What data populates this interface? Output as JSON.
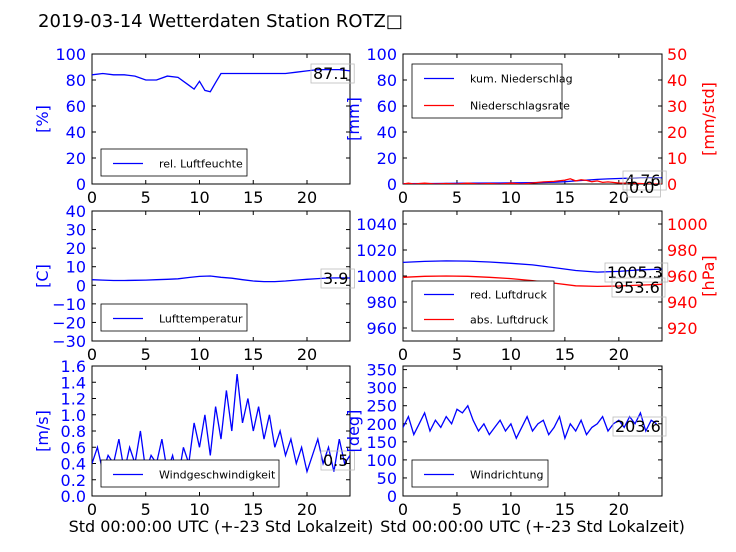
{
  "title": "2019-03-14 Wetterdaten Station ROTZ□",
  "colors": {
    "primary": "#0000ff",
    "secondary": "#ff0000",
    "text": "#000000"
  },
  "chart_data": [
    {
      "id": "humidity",
      "type": "line",
      "ylabel": "[%]",
      "xlabel": "",
      "xlim": [
        0,
        24
      ],
      "ylim": [
        0,
        100
      ],
      "xticks": [
        "0",
        "5",
        "10",
        "15",
        "20"
      ],
      "yticks": [
        "0",
        "20",
        "40",
        "60",
        "80",
        "100"
      ],
      "series": [
        {
          "name": "rel. Luftfeuchte",
          "color": "#0000ff",
          "x": [
            0,
            1,
            2,
            3,
            4,
            5,
            6,
            7,
            8,
            9,
            9.5,
            10,
            10.5,
            11,
            11.5,
            12,
            13,
            14,
            15,
            16,
            17,
            18,
            19,
            20,
            21,
            22,
            23,
            24
          ],
          "y": [
            84,
            85,
            84,
            84,
            83,
            80,
            80,
            83,
            82,
            76,
            73,
            79,
            72,
            71,
            78,
            85,
            85,
            85,
            85,
            85,
            85,
            85,
            86,
            87,
            88,
            88,
            88,
            87
          ]
        }
      ],
      "annotations": [
        "87.1"
      ]
    },
    {
      "id": "precipitation",
      "type": "line",
      "ylabel": "[mm]",
      "y2label": "[mm/std]",
      "xlabel": "",
      "xlim": [
        0,
        24
      ],
      "ylim": [
        0,
        100
      ],
      "y2lim": [
        0,
        50
      ],
      "xticks": [
        "0",
        "5",
        "10",
        "15",
        "20"
      ],
      "yticks": [
        "0",
        "20",
        "40",
        "60",
        "80",
        "100"
      ],
      "y2ticks": [
        "0",
        "10",
        "20",
        "30",
        "40",
        "50"
      ],
      "series": [
        {
          "name": "kum. Niederschlag",
          "color": "#0000ff",
          "axis": "left",
          "x": [
            0,
            3,
            6,
            9,
            12,
            14,
            15,
            16,
            17,
            18,
            19,
            20,
            21,
            22,
            23,
            24
          ],
          "y": [
            0.2,
            0.4,
            0.6,
            0.8,
            1.0,
            1.4,
            1.8,
            2.4,
            3.0,
            3.5,
            3.9,
            4.2,
            4.5,
            4.7,
            4.76,
            4.76
          ]
        },
        {
          "name": "Niederschlagsrate",
          "color": "#ff0000",
          "axis": "right",
          "x": [
            0,
            0.5,
            1,
            2,
            3,
            4,
            5,
            6,
            7,
            8,
            9,
            10,
            11,
            12,
            13,
            14,
            15,
            15.5,
            16,
            16.5,
            17,
            17.5,
            18,
            18.5,
            19,
            20,
            21,
            22,
            23,
            24
          ],
          "y": [
            0,
            0.3,
            0,
            0.3,
            0,
            0.2,
            0,
            0.3,
            0,
            0.2,
            0,
            0.3,
            0,
            0.4,
            0.8,
            1.0,
            1.5,
            2.0,
            1.2,
            1.6,
            1.4,
            0.9,
            1.2,
            0.6,
            0.8,
            0.4,
            0.3,
            0.2,
            0,
            0
          ]
        }
      ],
      "annotations": [
        "4.76",
        "0.0"
      ]
    },
    {
      "id": "temperature",
      "type": "line",
      "ylabel": "[C]",
      "xlabel": "",
      "xlim": [
        0,
        24
      ],
      "ylim": [
        -30,
        40
      ],
      "xticks": [
        "0",
        "5",
        "10",
        "15",
        "20"
      ],
      "yticks": [
        "−30",
        "−20",
        "−10",
        "0",
        "10",
        "20",
        "30",
        "40"
      ],
      "series": [
        {
          "name": "Lufttemperatur",
          "color": "#0000ff",
          "x": [
            0,
            1,
            2,
            3,
            4,
            5,
            6,
            7,
            8,
            9,
            10,
            11,
            12,
            13,
            14,
            15,
            16,
            17,
            18,
            19,
            20,
            21,
            22,
            23,
            24
          ],
          "y": [
            3.0,
            2.8,
            2.6,
            2.6,
            2.7,
            2.8,
            3.0,
            3.2,
            3.5,
            4.2,
            4.8,
            5.0,
            4.3,
            3.8,
            3.0,
            2.3,
            2.0,
            2.0,
            2.3,
            2.8,
            3.2,
            3.6,
            3.9,
            4.0,
            3.9
          ]
        }
      ],
      "annotations": [
        "3.9"
      ]
    },
    {
      "id": "pressure",
      "type": "line",
      "ylabel": "",
      "y2label": "[hPa]",
      "xlabel": "",
      "xlim": [
        0,
        24
      ],
      "ylim": [
        950,
        1050
      ],
      "y2lim": [
        910,
        1010
      ],
      "xticks": [
        "0",
        "5",
        "10",
        "15",
        "20"
      ],
      "yticks": [
        "960",
        "980",
        "1000",
        "1020",
        "1040"
      ],
      "y2ticks": [
        "920",
        "940",
        "960",
        "980",
        "1000"
      ],
      "series": [
        {
          "name": "red. Luftdruck",
          "color": "#0000ff",
          "axis": "left",
          "x": [
            0,
            2,
            4,
            6,
            8,
            10,
            12,
            14,
            16,
            18,
            20,
            22,
            24
          ],
          "y": [
            1010.5,
            1011.2,
            1011.6,
            1011.5,
            1010.8,
            1009.8,
            1008.5,
            1006.5,
            1004.2,
            1003.0,
            1003.5,
            1004.8,
            1005.3
          ]
        },
        {
          "name": "abs. Luftdruck",
          "color": "#ff0000",
          "axis": "right",
          "x": [
            0,
            2,
            4,
            6,
            8,
            10,
            12,
            14,
            16,
            18,
            20,
            22,
            24
          ],
          "y": [
            959,
            959.8,
            960,
            959.8,
            959,
            958,
            956.5,
            954.5,
            952.5,
            952.0,
            952.3,
            953.0,
            953.6
          ]
        }
      ],
      "annotations": [
        "1005.3",
        "953.6"
      ]
    },
    {
      "id": "windspeed",
      "type": "line",
      "ylabel": "[m/s]",
      "xlabel": "Std 00:00:00 UTC (+-23 Std Lokalzeit)",
      "xlim": [
        0,
        24
      ],
      "ylim": [
        0,
        1.6
      ],
      "xticks": [
        "0",
        "5",
        "10",
        "15",
        "20"
      ],
      "yticks": [
        "0.0",
        "0.2",
        "0.4",
        "0.6",
        "0.8",
        "1.0",
        "1.2",
        "1.4",
        "1.6"
      ],
      "series": [
        {
          "name": "Windgeschwindigkeit",
          "color": "#0000ff",
          "x": [
            0,
            0.5,
            1,
            1.5,
            2,
            2.5,
            3,
            3.5,
            4,
            4.5,
            5,
            5.5,
            6,
            6.5,
            7,
            7.5,
            8,
            8.5,
            9,
            9.5,
            10,
            10.5,
            11,
            11.5,
            12,
            12.5,
            13,
            13.5,
            14,
            14.5,
            15,
            15.5,
            16,
            16.5,
            17,
            17.5,
            18,
            18.5,
            19,
            19.5,
            20,
            20.5,
            21,
            21.5,
            22,
            22.5,
            23,
            23.5,
            24
          ],
          "y": [
            0.4,
            0.6,
            0.3,
            0.5,
            0.4,
            0.7,
            0.3,
            0.6,
            0.4,
            0.8,
            0.3,
            0.5,
            0.4,
            0.7,
            0.3,
            0.5,
            0.2,
            0.6,
            0.4,
            0.9,
            0.6,
            1.0,
            0.5,
            1.1,
            0.7,
            1.3,
            0.8,
            1.5,
            0.9,
            1.2,
            0.8,
            1.1,
            0.7,
            1.0,
            0.6,
            0.8,
            0.5,
            0.7,
            0.4,
            0.6,
            0.3,
            0.5,
            0.7,
            0.4,
            0.6,
            0.3,
            0.7,
            0.4,
            0.5
          ]
        }
      ],
      "annotations": [
        "0.5"
      ]
    },
    {
      "id": "winddirection",
      "type": "line",
      "ylabel": "[deg]",
      "xlabel": "Std 00:00:00 UTC (+-23 Std Lokalzeit)",
      "xlim": [
        0,
        24
      ],
      "ylim": [
        0,
        360
      ],
      "xticks": [
        "0",
        "5",
        "10",
        "15",
        "20"
      ],
      "yticks": [
        "0",
        "50",
        "100",
        "150",
        "200",
        "250",
        "300",
        "350"
      ],
      "series": [
        {
          "name": "Windrichtung",
          "color": "#0000ff",
          "x": [
            0,
            0.5,
            1,
            1.5,
            2,
            2.5,
            3,
            3.5,
            4,
            4.5,
            5,
            5.5,
            6,
            6.5,
            7,
            7.5,
            8,
            8.5,
            9,
            9.5,
            10,
            10.5,
            11,
            11.5,
            12,
            12.5,
            13,
            13.5,
            14,
            14.5,
            15,
            15.5,
            16,
            16.5,
            17,
            17.5,
            18,
            18.5,
            19,
            19.5,
            20,
            20.5,
            21,
            21.5,
            22,
            22.5,
            23,
            23.5
          ],
          "y": [
            190,
            220,
            170,
            200,
            230,
            180,
            210,
            190,
            220,
            200,
            240,
            230,
            250,
            210,
            180,
            200,
            170,
            190,
            210,
            180,
            200,
            160,
            190,
            220,
            180,
            200,
            210,
            170,
            190,
            220,
            160,
            200,
            180,
            210,
            170,
            190,
            200,
            220,
            180,
            200,
            210,
            190,
            220,
            200,
            230,
            180,
            210,
            200
          ]
        }
      ],
      "annotations": [
        "203.6"
      ]
    }
  ]
}
